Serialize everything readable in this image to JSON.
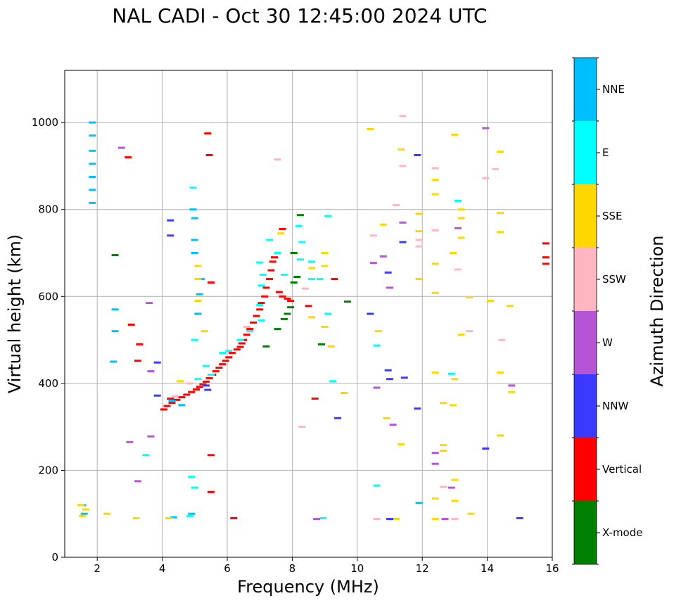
{
  "chart_data": {
    "type": "scatter",
    "title": "NAL CADI - Oct 30 12:45:00 2024 UTC",
    "xlabel": "Frequency (MHz)",
    "ylabel": "Virtual height (km)",
    "xlim": [
      1,
      16
    ],
    "ylim": [
      0,
      1120
    ],
    "x_ticks": [
      2,
      4,
      6,
      8,
      10,
      12,
      14,
      16
    ],
    "y_ticks": [
      0,
      200,
      400,
      600,
      800,
      1000
    ],
    "grid": true,
    "colorbar": {
      "label": "Azimuth Direction",
      "categories": [
        {
          "name": "X-mode",
          "color": "#008000"
        },
        {
          "name": "Vertical",
          "color": "#ff0000"
        },
        {
          "name": "NNW",
          "color": "#3a3aff"
        },
        {
          "name": "W",
          "color": "#b555d6"
        },
        {
          "name": "SSW",
          "color": "#ffb6c1"
        },
        {
          "name": "SSE",
          "color": "#ffd700"
        },
        {
          "name": "E",
          "color": "#00ffff"
        },
        {
          "name": "NNE",
          "color": "#00bfff"
        }
      ]
    },
    "series": [
      {
        "name": "Vertical",
        "points": [
          [
            4.05,
            340
          ],
          [
            4.15,
            348
          ],
          [
            4.3,
            355
          ],
          [
            4.45,
            362
          ],
          [
            4.6,
            368
          ],
          [
            4.75,
            374
          ],
          [
            4.9,
            380
          ],
          [
            5.05,
            386
          ],
          [
            5.15,
            392
          ],
          [
            5.25,
            398
          ],
          [
            5.35,
            404
          ],
          [
            5.45,
            412
          ],
          [
            5.55,
            420
          ],
          [
            5.65,
            428
          ],
          [
            5.75,
            436
          ],
          [
            5.85,
            444
          ],
          [
            5.95,
            452
          ],
          [
            6.05,
            460
          ],
          [
            6.15,
            470
          ],
          [
            6.3,
            478
          ],
          [
            6.4,
            484
          ],
          [
            6.45,
            492
          ],
          [
            6.5,
            500
          ],
          [
            6.6,
            512
          ],
          [
            6.7,
            525
          ],
          [
            6.8,
            540
          ],
          [
            6.9,
            555
          ],
          [
            7.0,
            570
          ],
          [
            7.05,
            585
          ],
          [
            7.15,
            600
          ],
          [
            7.2,
            620
          ],
          [
            7.3,
            640
          ],
          [
            7.35,
            660
          ],
          [
            7.4,
            680
          ],
          [
            7.45,
            690
          ],
          [
            7.6,
            610
          ],
          [
            7.7,
            600
          ],
          [
            7.85,
            595
          ],
          [
            7.95,
            590
          ],
          [
            6.2,
            90
          ],
          [
            5.5,
            150
          ],
          [
            5.5,
            235
          ],
          [
            5.5,
            632
          ],
          [
            5.45,
            925
          ],
          [
            5.4,
            975
          ],
          [
            2.95,
            920
          ],
          [
            3.05,
            535
          ],
          [
            3.3,
            490
          ],
          [
            3.25,
            452
          ],
          [
            4.25,
            365
          ],
          [
            7.7,
            755
          ],
          [
            8.7,
            365
          ],
          [
            8.5,
            578
          ],
          [
            9.3,
            640
          ],
          [
            15.8,
            675
          ],
          [
            15.8,
            690
          ],
          [
            15.8,
            722
          ]
        ]
      },
      {
        "name": "X-mode",
        "points": [
          [
            7.2,
            485
          ],
          [
            7.55,
            525
          ],
          [
            7.75,
            548
          ],
          [
            7.85,
            560
          ],
          [
            7.95,
            575
          ],
          [
            8.05,
            632
          ],
          [
            8.15,
            645
          ],
          [
            8.05,
            700
          ],
          [
            8.25,
            787
          ],
          [
            8.9,
            490
          ],
          [
            9.7,
            588
          ],
          [
            2.55,
            695
          ]
        ]
      },
      {
        "name": "NNE",
        "points": [
          [
            1.85,
            1000
          ],
          [
            1.85,
            970
          ],
          [
            1.85,
            935
          ],
          [
            1.85,
            905
          ],
          [
            1.85,
            875
          ],
          [
            1.85,
            845
          ],
          [
            1.85,
            815
          ],
          [
            1.55,
            120
          ],
          [
            1.6,
            100
          ],
          [
            4.95,
            800
          ],
          [
            5.0,
            780
          ],
          [
            5.0,
            730
          ],
          [
            5.0,
            700
          ],
          [
            5.2,
            640
          ],
          [
            5.15,
            605
          ],
          [
            5.1,
            560
          ],
          [
            2.55,
            570
          ],
          [
            2.55,
            520
          ],
          [
            2.5,
            450
          ],
          [
            4.3,
            360
          ],
          [
            4.6,
            350
          ],
          [
            4.9,
            100
          ],
          [
            4.35,
            92
          ],
          [
            11.9,
            125
          ]
        ]
      },
      {
        "name": "E",
        "points": [
          [
            5.1,
            410
          ],
          [
            5.35,
            440
          ],
          [
            5.5,
            420
          ],
          [
            5.85,
            470
          ],
          [
            6.05,
            475
          ],
          [
            6.4,
            500
          ],
          [
            6.7,
            520
          ],
          [
            7.05,
            545
          ],
          [
            7.0,
            580
          ],
          [
            7.05,
            625
          ],
          [
            7.1,
            650
          ],
          [
            7.0,
            678
          ],
          [
            7.3,
            730
          ],
          [
            7.55,
            700
          ],
          [
            7.75,
            650
          ],
          [
            8.2,
            762
          ],
          [
            8.25,
            685
          ],
          [
            8.3,
            725
          ],
          [
            8.6,
            640
          ],
          [
            8.85,
            640
          ],
          [
            9.1,
            785
          ],
          [
            9.1,
            560
          ],
          [
            9.25,
            405
          ],
          [
            8.95,
            90
          ],
          [
            4.95,
            850
          ],
          [
            5.0,
            500
          ],
          [
            4.9,
            185
          ],
          [
            5.0,
            160
          ],
          [
            4.85,
            95
          ],
          [
            3.5,
            235
          ],
          [
            10.6,
            165
          ],
          [
            10.6,
            487
          ],
          [
            12.9,
            422
          ],
          [
            13.1,
            820
          ],
          [
            8.6,
            680
          ]
        ]
      },
      {
        "name": "SSE",
        "points": [
          [
            1.5,
            120
          ],
          [
            1.55,
            95
          ],
          [
            1.65,
            110
          ],
          [
            2.3,
            100
          ],
          [
            3.2,
            90
          ],
          [
            4.2,
            90
          ],
          [
            4.55,
            405
          ],
          [
            5.3,
            520
          ],
          [
            5.1,
            590
          ],
          [
            5.1,
            640
          ],
          [
            5.1,
            670
          ],
          [
            7.65,
            745
          ],
          [
            8.6,
            552
          ],
          [
            8.6,
            665
          ],
          [
            9.0,
            700
          ],
          [
            9.0,
            670
          ],
          [
            9.0,
            530
          ],
          [
            9.2,
            485
          ],
          [
            9.6,
            378
          ],
          [
            10.65,
            520
          ],
          [
            10.9,
            320
          ],
          [
            10.8,
            765
          ],
          [
            10.4,
            985
          ],
          [
            11.35,
            260
          ],
          [
            11.35,
            938
          ],
          [
            11.9,
            790
          ],
          [
            11.9,
            750
          ],
          [
            11.9,
            640
          ],
          [
            12.4,
            135
          ],
          [
            12.4,
            675
          ],
          [
            12.4,
            608
          ],
          [
            12.4,
            425
          ],
          [
            12.4,
            868
          ],
          [
            12.4,
            835
          ],
          [
            12.65,
            258
          ],
          [
            12.65,
            245
          ],
          [
            12.65,
            355
          ],
          [
            12.95,
            700
          ],
          [
            12.95,
            350
          ],
          [
            13.0,
            972
          ],
          [
            13.0,
            410
          ],
          [
            13.0,
            130
          ],
          [
            13.0,
            178
          ],
          [
            13.2,
            800
          ],
          [
            13.2,
            780
          ],
          [
            13.2,
            735
          ],
          [
            13.2,
            512
          ],
          [
            13.45,
            598
          ],
          [
            13.5,
            100
          ],
          [
            14.1,
            590
          ],
          [
            14.4,
            792
          ],
          [
            14.4,
            748
          ],
          [
            14.4,
            425
          ],
          [
            14.4,
            280
          ],
          [
            14.4,
            933
          ],
          [
            14.7,
            578
          ],
          [
            14.75,
            380
          ],
          [
            11.2,
            88
          ],
          [
            12.4,
            88
          ]
        ]
      },
      {
        "name": "SSW",
        "points": [
          [
            4.4,
            370
          ],
          [
            4.85,
            400
          ],
          [
            6.6,
            530
          ],
          [
            7.55,
            915
          ],
          [
            8.4,
            618
          ],
          [
            8.3,
            300
          ],
          [
            10.5,
            740
          ],
          [
            11.2,
            810
          ],
          [
            11.4,
            1015
          ],
          [
            11.4,
            900
          ],
          [
            11.9,
            730
          ],
          [
            11.9,
            715
          ],
          [
            12.4,
            895
          ],
          [
            12.4,
            752
          ],
          [
            12.65,
            162
          ],
          [
            13.1,
            662
          ],
          [
            13.45,
            520
          ],
          [
            13.95,
            872
          ],
          [
            14.25,
            893
          ],
          [
            14.45,
            500
          ],
          [
            10.6,
            88
          ],
          [
            13.0,
            88
          ]
        ]
      },
      {
        "name": "W",
        "points": [
          [
            2.75,
            942
          ],
          [
            3.6,
            585
          ],
          [
            3.65,
            428
          ],
          [
            3.65,
            278
          ],
          [
            3.25,
            175
          ],
          [
            3.0,
            265
          ],
          [
            10.5,
            677
          ],
          [
            10.8,
            692
          ],
          [
            11.0,
            620
          ],
          [
            11.1,
            305
          ],
          [
            11.4,
            770
          ],
          [
            12.4,
            240
          ],
          [
            12.4,
            215
          ],
          [
            12.9,
            160
          ],
          [
            13.1,
            757
          ],
          [
            13.95,
            987
          ],
          [
            14.75,
            395
          ],
          [
            10.6,
            390
          ],
          [
            8.75,
            88
          ],
          [
            12.7,
            88
          ]
        ]
      },
      {
        "name": "NNW",
        "points": [
          [
            3.85,
            448
          ],
          [
            3.85,
            372
          ],
          [
            4.25,
            775
          ],
          [
            4.25,
            740
          ],
          [
            5.35,
            395
          ],
          [
            5.4,
            385
          ],
          [
            9.4,
            320
          ],
          [
            10.4,
            560
          ],
          [
            10.95,
            430
          ],
          [
            10.95,
            655
          ],
          [
            11.0,
            410
          ],
          [
            11.4,
            725
          ],
          [
            11.45,
            413
          ],
          [
            11.85,
            342
          ],
          [
            11.85,
            925
          ],
          [
            13.95,
            250
          ],
          [
            15.0,
            90
          ],
          [
            11.0,
            88
          ]
        ]
      }
    ]
  }
}
